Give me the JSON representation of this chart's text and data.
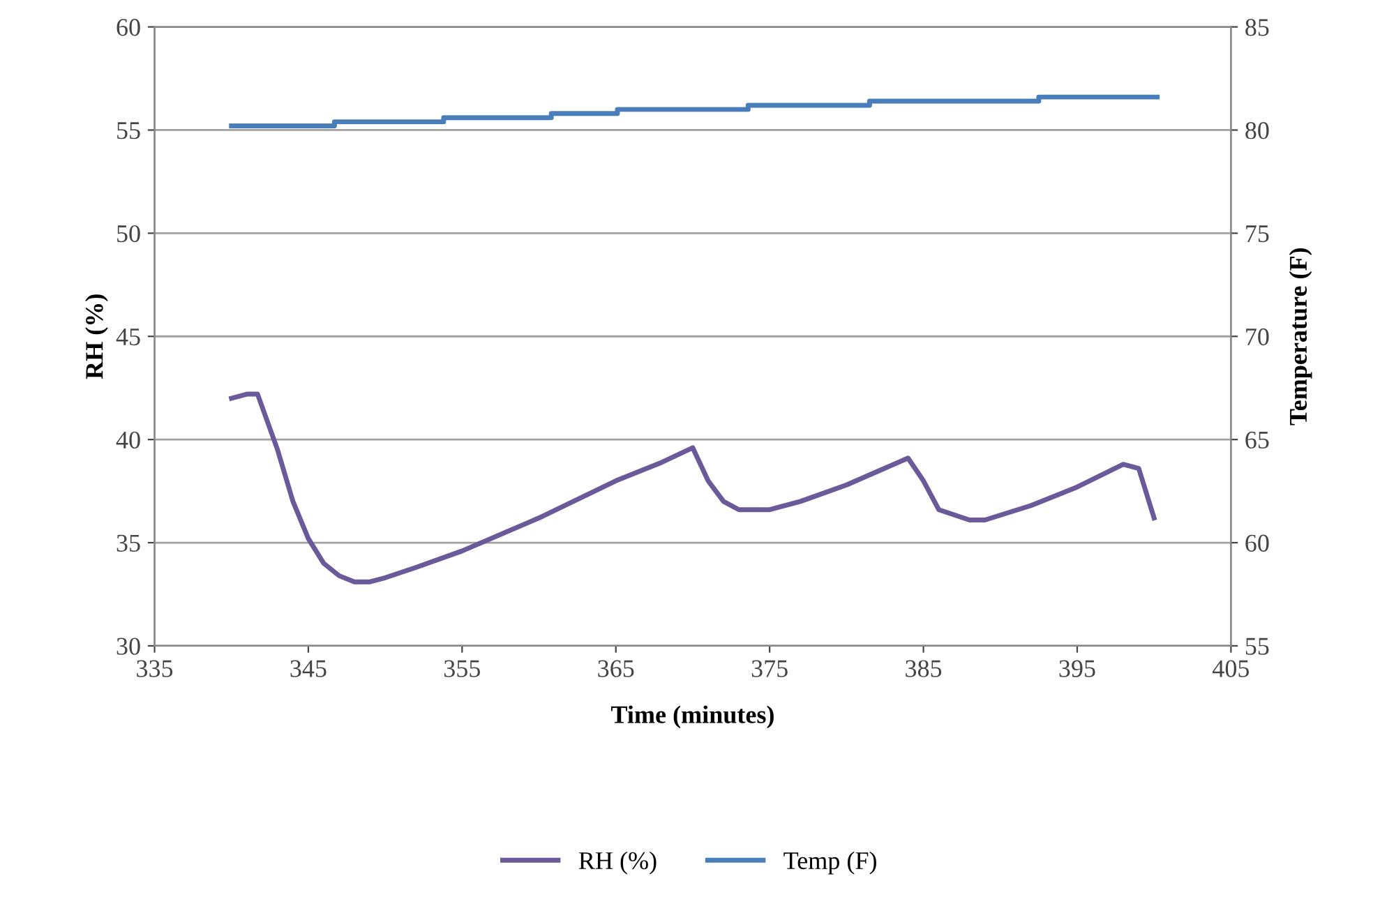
{
  "chart_data": {
    "type": "line",
    "xlabel": "Time (minutes)",
    "ylabel": "RH (%)",
    "y2label": "Temperature (F)",
    "xlim": [
      335,
      405
    ],
    "xticks": [
      335,
      345,
      355,
      365,
      375,
      385,
      395,
      405
    ],
    "ylim": [
      30,
      60
    ],
    "yticks": [
      30,
      35,
      40,
      45,
      50,
      55,
      60
    ],
    "y2lim": [
      55,
      85
    ],
    "y2ticks": [
      55,
      60,
      65,
      70,
      75,
      80,
      85
    ],
    "grid": "y",
    "legend": "bottom",
    "marker": "none",
    "line_style": "solid",
    "series": [
      {
        "name": "RH (%)",
        "color": "#6a5a9a",
        "x": [
          340,
          341,
          341.7,
          343,
          344,
          345,
          346,
          347,
          348,
          349,
          350,
          352,
          355,
          360,
          365,
          368,
          370,
          371,
          372,
          373,
          375,
          377,
          380,
          384,
          385,
          386,
          388,
          389,
          392,
          395,
          398,
          399,
          400
        ],
        "values": [
          42,
          42.2,
          42.2,
          39.5,
          37,
          35.2,
          34,
          33.4,
          33.1,
          33.1,
          33.3,
          33.8,
          34.6,
          36.2,
          38,
          38.9,
          39.6,
          38,
          37,
          36.6,
          36.6,
          37,
          37.8,
          39.1,
          38,
          36.6,
          36.1,
          36.1,
          36.8,
          37.7,
          38.8,
          38.6,
          36.2
        ]
      },
      {
        "name": "Temp (F)",
        "color": "#4a7ebb",
        "type": "step",
        "axis": "y2",
        "x": [
          340,
          346.7,
          353.8,
          360.8,
          365.1,
          373.6,
          381.5,
          392.5,
          400.2
        ],
        "values": [
          80.2,
          80.4,
          80.6,
          80.8,
          81.0,
          81.2,
          81.4,
          81.6,
          81.6
        ]
      }
    ]
  }
}
